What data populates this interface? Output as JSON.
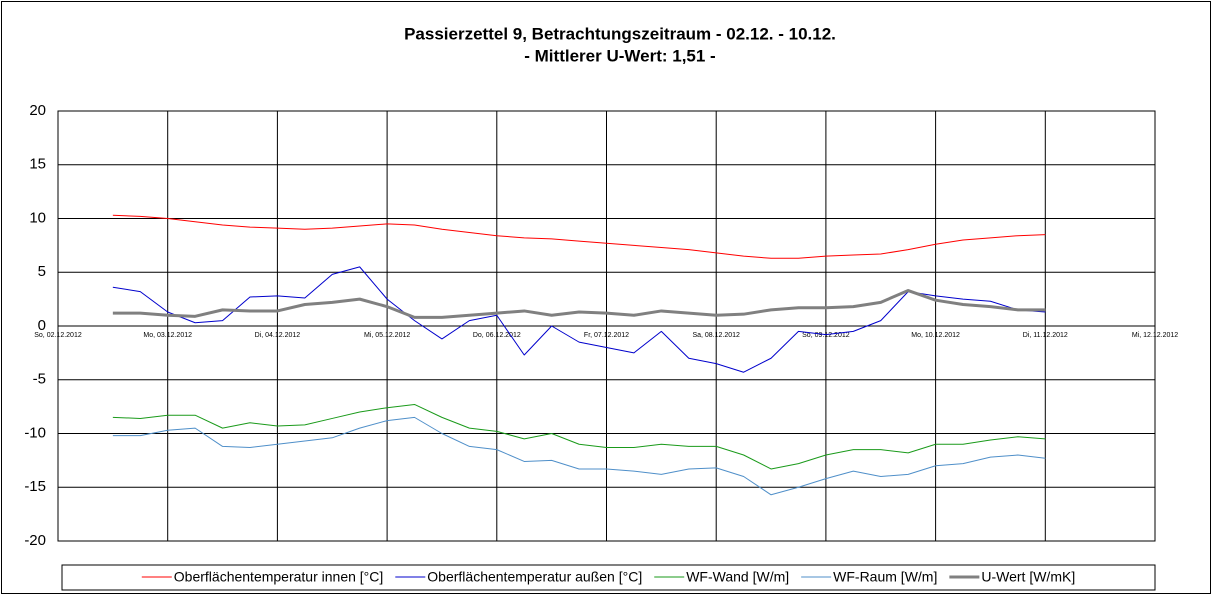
{
  "chart_data": {
    "type": "line",
    "title": "Passierzettel 9, Betrachtungszeitraum - 02.12. - 10.12.",
    "subtitle": "- Mittlerer U-Wert: 1,51 -",
    "x": [
      0.5,
      0.75,
      1.0,
      1.25,
      1.5,
      1.75,
      2.0,
      2.25,
      2.5,
      2.75,
      3.0,
      3.25,
      3.5,
      3.75,
      4.0,
      4.25,
      4.5,
      4.75,
      5.0,
      5.25,
      5.5,
      5.75,
      6.0,
      6.25,
      6.5,
      6.75,
      7.0,
      7.25,
      7.5,
      7.75,
      8.0,
      8.25,
      8.5,
      8.75,
      9.0
    ],
    "series": [
      {
        "name": "Oberflächentemperatur innen [°C]",
        "color": "#ff0000",
        "width": 1,
        "values": [
          10.3,
          10.2,
          10.0,
          9.7,
          9.4,
          9.2,
          9.1,
          9.0,
          9.1,
          9.3,
          9.5,
          9.4,
          9.0,
          8.7,
          8.4,
          8.2,
          8.1,
          7.9,
          7.7,
          7.5,
          7.3,
          7.1,
          6.8,
          6.5,
          6.3,
          6.3,
          6.5,
          6.6,
          6.7,
          7.1,
          7.6,
          8.0,
          8.2,
          8.4,
          8.5
        ]
      },
      {
        "name": "Oberflächentemperatur außen [°C]",
        "color": "#0000cc",
        "width": 1,
        "values": [
          3.6,
          3.2,
          1.3,
          0.3,
          0.5,
          2.7,
          2.8,
          2.6,
          4.8,
          5.5,
          2.5,
          0.5,
          -1.2,
          0.5,
          1.0,
          -2.7,
          0.0,
          -1.5,
          -2.0,
          -2.5,
          -0.5,
          -3.0,
          -3.5,
          -4.3,
          -3.0,
          -0.5,
          -0.8,
          -0.5,
          0.5,
          3.2,
          2.8,
          2.5,
          2.3,
          1.5,
          1.3
        ]
      },
      {
        "name": "WF-Wand [W/m]",
        "color": "#1a9a1a",
        "width": 1,
        "values": [
          -8.5,
          -8.6,
          -8.3,
          -8.3,
          -9.5,
          -9.0,
          -9.3,
          -9.2,
          -8.6,
          -8.0,
          -7.6,
          -7.3,
          -8.5,
          -9.5,
          -9.8,
          -10.5,
          -10.0,
          -11.0,
          -11.3,
          -11.3,
          -11.0,
          -11.2,
          -11.2,
          -12.0,
          -13.3,
          -12.8,
          -12.0,
          -11.5,
          -11.5,
          -11.8,
          -11.0,
          -11.0,
          -10.6,
          -10.3,
          -10.5
        ]
      },
      {
        "name": "WF-Raum [W/m]",
        "color": "#4f8fc9",
        "width": 1,
        "values": [
          -10.2,
          -10.2,
          -9.7,
          -9.5,
          -11.2,
          -11.3,
          -11.0,
          -10.7,
          -10.4,
          -9.5,
          -8.8,
          -8.5,
          -10.0,
          -11.2,
          -11.5,
          -12.6,
          -12.5,
          -13.3,
          -13.3,
          -13.5,
          -13.8,
          -13.3,
          -13.2,
          -14.0,
          -15.7,
          -15.0,
          -14.2,
          -13.5,
          -14.0,
          -13.8,
          -13.0,
          -12.8,
          -12.2,
          -12.0,
          -12.3
        ]
      },
      {
        "name": "U-Wert [W/mK]",
        "color": "#808080",
        "width": 3,
        "values": [
          1.2,
          1.2,
          1.0,
          0.9,
          1.5,
          1.4,
          1.4,
          2.0,
          2.2,
          2.5,
          1.8,
          0.8,
          0.8,
          1.0,
          1.2,
          1.4,
          1.0,
          1.3,
          1.2,
          1.0,
          1.4,
          1.2,
          1.0,
          1.1,
          1.5,
          1.7,
          1.7,
          1.8,
          2.2,
          3.3,
          2.4,
          2.0,
          1.8,
          1.5,
          1.5
        ]
      }
    ],
    "xlim": [
      0,
      10
    ],
    "xticks": [
      {
        "value": 0,
        "label": "So, 02.12.2012"
      },
      {
        "value": 1,
        "label": "Mo, 03.12.2012"
      },
      {
        "value": 2,
        "label": "Di, 04.12.2012"
      },
      {
        "value": 3,
        "label": "Mi, 05.12.2012"
      },
      {
        "value": 4,
        "label": "Do, 06.12.2012"
      },
      {
        "value": 5,
        "label": "Fr, 07.12.2012"
      },
      {
        "value": 6,
        "label": "Sa, 08.12.2012"
      },
      {
        "value": 7,
        "label": "So, 09.12.2012"
      },
      {
        "value": 8,
        "label": "Mo, 10.12.2012"
      },
      {
        "value": 9,
        "label": "Di, 11.12.2012"
      },
      {
        "value": 10,
        "label": "Mi, 12.12.2012"
      }
    ],
    "ylim": [
      -20,
      20
    ],
    "yticks": [
      -20,
      -15,
      -10,
      -5,
      0,
      5,
      10,
      15,
      20
    ],
    "grid": true,
    "legend": "bottom"
  }
}
